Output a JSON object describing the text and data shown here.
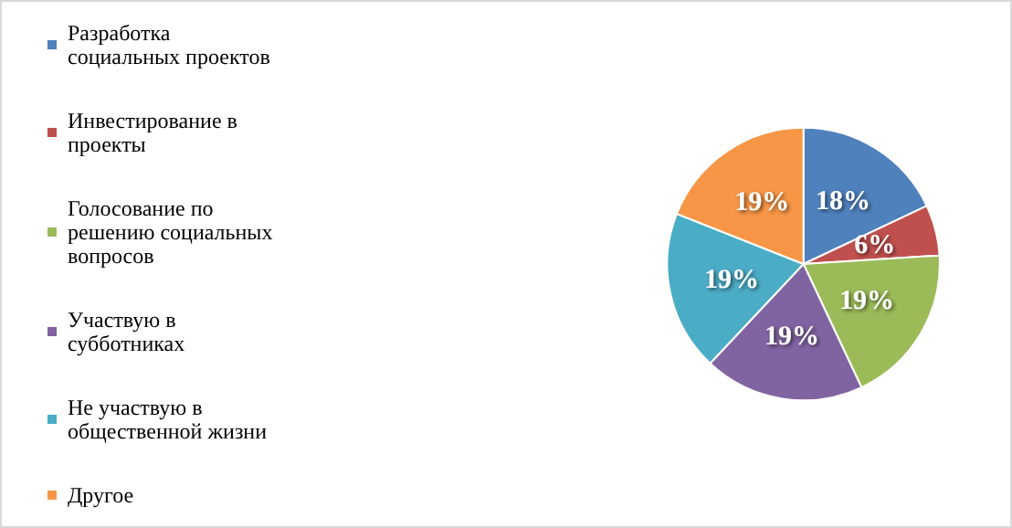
{
  "chart_data": {
    "type": "pie",
    "categories": [
      "Разработка социальных проектов",
      "Инвестирование в проекты",
      "Голосование по решению социальных вопросов",
      "Участвую в субботниках",
      "Не участвую в общественной жизни",
      "Другое"
    ],
    "values": [
      18,
      6,
      19,
      19,
      19,
      19
    ],
    "colors": [
      "#4f81bd",
      "#c0504d",
      "#9bbb59",
      "#8064a2",
      "#4bacc6",
      "#f79646"
    ],
    "value_labels": [
      "18%",
      "6%",
      "19%",
      "19%",
      "19%",
      "19%"
    ],
    "legend": "left"
  }
}
